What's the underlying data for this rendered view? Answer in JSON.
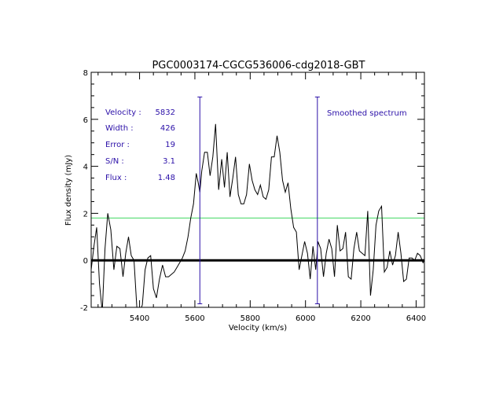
{
  "chart_data": {
    "type": "line",
    "title": "PGC0003174-CGCG536006-cdg2018-GBT",
    "xlabel": "Velocity (km/s)",
    "ylabel": "Flux density (mJy)",
    "xlim": [
      5225,
      6430
    ],
    "ylim": [
      -2,
      8
    ],
    "xticks": [
      5400,
      5600,
      5800,
      6000,
      6200,
      6400
    ],
    "yticks": [
      -2,
      0,
      2,
      4,
      6,
      8
    ],
    "zero_line": 0,
    "threshold_line": 1.8,
    "marker_lines": [
      5618,
      6043
    ],
    "legend_text": "Smoothed spectrum",
    "stats": [
      {
        "label": "Velocity :",
        "value": "5832"
      },
      {
        "label": "Width :",
        "value": "426"
      },
      {
        "label": "Error :",
        "value": "19"
      },
      {
        "label": "S/N :",
        "value": "3.1"
      },
      {
        "label": "Flux :",
        "value": "1.48"
      }
    ],
    "series": [
      {
        "name": "Smoothed spectrum",
        "x": [
          5225,
          5235,
          5245,
          5255,
          5265,
          5275,
          5285,
          5296,
          5307,
          5318,
          5329,
          5340,
          5350,
          5360,
          5370,
          5380,
          5390,
          5400,
          5410,
          5420,
          5430,
          5440,
          5450,
          5461,
          5472,
          5483,
          5494,
          5505,
          5515,
          5525,
          5535,
          5545,
          5555,
          5565,
          5575,
          5585,
          5595,
          5605,
          5612,
          5618,
          5625,
          5635,
          5645,
          5655,
          5665,
          5675,
          5686,
          5697,
          5707,
          5717,
          5727,
          5737,
          5747,
          5757,
          5767,
          5777,
          5787,
          5797,
          5807,
          5817,
          5827,
          5837,
          5847,
          5857,
          5867,
          5877,
          5887,
          5897,
          5907,
          5917,
          5927,
          5937,
          5947,
          5957,
          5967,
          5977,
          5987,
          5997,
          6007,
          6017,
          6027,
          6037,
          6043,
          6045,
          6055,
          6065,
          6075,
          6085,
          6095,
          6105,
          6115,
          6125,
          6135,
          6145,
          6155,
          6165,
          6175,
          6185,
          6195,
          6205,
          6215,
          6225,
          6235,
          6245,
          6255,
          6265,
          6275,
          6285,
          6295,
          6305,
          6315,
          6325,
          6335,
          6345,
          6355,
          6365,
          6375,
          6385,
          6395,
          6405,
          6415,
          6425,
          6430
        ],
        "y": [
          -0.4,
          0.6,
          1.4,
          -1.0,
          -2.2,
          0.5,
          2.0,
          1.3,
          -0.4,
          0.6,
          0.5,
          -0.7,
          0.3,
          1.0,
          0.2,
          0.0,
          -2.0,
          -2.2,
          -1.9,
          -0.4,
          0.1,
          0.2,
          -1.2,
          -1.6,
          -0.8,
          -0.2,
          -0.7,
          -0.7,
          -0.6,
          -0.5,
          -0.3,
          -0.1,
          0.1,
          0.4,
          1.0,
          1.8,
          2.4,
          3.7,
          3.3,
          2.9,
          3.8,
          4.6,
          4.6,
          3.6,
          4.4,
          5.8,
          3.0,
          4.3,
          3.1,
          4.6,
          2.7,
          3.5,
          4.4,
          2.8,
          2.4,
          2.4,
          2.8,
          4.1,
          3.4,
          3.0,
          2.8,
          3.2,
          2.7,
          2.6,
          3.0,
          4.4,
          4.4,
          5.3,
          4.6,
          3.4,
          2.9,
          3.3,
          2.2,
          1.4,
          1.2,
          -0.4,
          0.2,
          0.8,
          0.3,
          -0.8,
          0.6,
          -0.4,
          0.4,
          0.8,
          0.5,
          -0.7,
          0.3,
          0.9,
          0.5,
          -0.7,
          1.5,
          0.4,
          0.5,
          1.2,
          -0.7,
          -0.8,
          0.5,
          1.2,
          0.4,
          0.3,
          0.2,
          2.1,
          -1.5,
          -0.4,
          1.5,
          2.1,
          2.3,
          -0.5,
          -0.3,
          0.4,
          -0.2,
          0.2,
          1.2,
          0.3,
          -0.9,
          -0.8,
          0.1,
          0.1,
          0.0,
          0.3,
          0.2,
          -0.1,
          0.0
        ]
      }
    ],
    "colors": {
      "spectrum": "#000000",
      "axes": "#000000",
      "threshold": "#40d860",
      "markers": "#2b10a8",
      "text_blue": "#2b10a8"
    }
  }
}
